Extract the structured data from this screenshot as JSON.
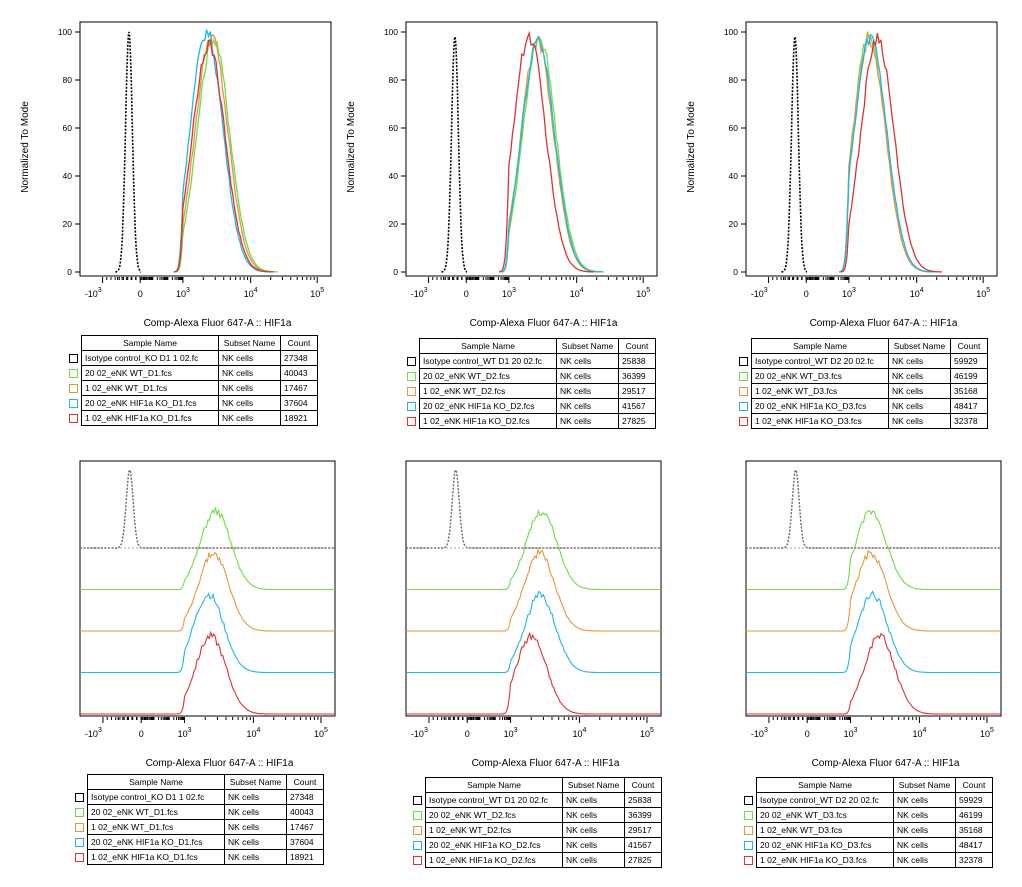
{
  "series_colors": [
    "#000000",
    "#6edc4a",
    "#e8963c",
    "#20b6e6",
    "#dc3232"
  ],
  "legend_headers": {
    "sample": "Sample Name",
    "subset": "Subset Name",
    "count": "Count"
  },
  "chart_data": [
    {
      "type": "line",
      "ylabel": "Normalized To Mode",
      "xlabel": "Comp-Alexa Fluor 647-A :: HIF1a",
      "y_ticks": [
        "0",
        "20",
        "40",
        "60",
        "80",
        "100"
      ],
      "x_ticks": [
        "-10^3",
        "0",
        "10^3",
        "10^4",
        "10^5"
      ],
      "ylim": [
        0,
        100
      ],
      "series": [
        {
          "name": "Isotype control_KO D1 1 02.fc",
          "subset": "NK cells",
          "count": "27348",
          "peak_log10": -0.3,
          "peak_height": 100
        },
        {
          "name": "20 02_eNK WT_D1.fcs",
          "subset": "NK cells",
          "count": "40043",
          "peak_log10": 3.45,
          "peak_height": 97
        },
        {
          "name": "1 02_eNK WT_D1.fcs",
          "subset": "NK cells",
          "count": "17467",
          "peak_log10": 3.42,
          "peak_height": 98
        },
        {
          "name": "20 02_eNK HIF1a KO_D1.fcs",
          "subset": "NK cells",
          "count": "37604",
          "peak_log10": 3.35,
          "peak_height": 100
        },
        {
          "name": "1 02_eNK HIF1a KO_D1.fcs",
          "subset": "NK cells",
          "count": "18921",
          "peak_log10": 3.38,
          "peak_height": 95
        }
      ]
    },
    {
      "type": "line",
      "ylabel": "Normalized To Mode",
      "xlabel": "Comp-Alexa Fluor 647-A :: HIF1a",
      "y_ticks": [
        "0",
        "20",
        "40",
        "60",
        "80",
        "100"
      ],
      "x_ticks": [
        "-10^3",
        "0",
        "10^3",
        "10^4",
        "10^5"
      ],
      "ylim": [
        0,
        100
      ],
      "series": [
        {
          "name": "Isotype control_WT D1 20 02.fc",
          "subset": "NK cells",
          "count": "25838",
          "peak_log10": -0.3,
          "peak_height": 98
        },
        {
          "name": "20 02_eNK WT_D2.fcs",
          "subset": "NK cells",
          "count": "36399",
          "peak_log10": 3.45,
          "peak_height": 98
        },
        {
          "name": "1 02_eNK WT_D2.fcs",
          "subset": "NK cells",
          "count": "29517",
          "peak_log10": 3.42,
          "peak_height": 96
        },
        {
          "name": "20 02_eNK HIF1a KO_D2.fcs",
          "subset": "NK cells",
          "count": "41567",
          "peak_log10": 3.43,
          "peak_height": 97
        },
        {
          "name": "1 02_eNK HIF1a KO_D2.fcs",
          "subset": "NK cells",
          "count": "27825",
          "peak_log10": 3.3,
          "peak_height": 98
        }
      ]
    },
    {
      "type": "line",
      "ylabel": "Normalized To Mode",
      "xlabel": "Comp-Alexa Fluor 647-A :: HIF1a",
      "y_ticks": [
        "0",
        "20",
        "40",
        "60",
        "80",
        "100"
      ],
      "x_ticks": [
        "-10^3",
        "0",
        "10^3",
        "10^4",
        "10^5"
      ],
      "ylim": [
        0,
        100
      ],
      "series": [
        {
          "name": "Isotype control_WT D2 20 02.fc",
          "subset": "NK cells",
          "count": "59929",
          "peak_log10": -0.3,
          "peak_height": 98
        },
        {
          "name": "20 02_eNK WT_D3.fcs",
          "subset": "NK cells",
          "count": "46199",
          "peak_log10": 3.3,
          "peak_height": 98
        },
        {
          "name": "1 02_eNK WT_D3.fcs",
          "subset": "NK cells",
          "count": "35168",
          "peak_log10": 3.3,
          "peak_height": 97
        },
        {
          "name": "20 02_eNK HIF1a KO_D3.fcs",
          "subset": "NK cells",
          "count": "48417",
          "peak_log10": 3.32,
          "peak_height": 98
        },
        {
          "name": "1 02_eNK HIF1a KO_D3.fcs",
          "subset": "NK cells",
          "count": "32378",
          "peak_log10": 3.42,
          "peak_height": 98
        }
      ]
    },
    {
      "type": "line",
      "xlabel": "Comp-Alexa Fluor 647-A :: HIF1a",
      "x_ticks": [
        "-10^3",
        "0",
        "10^3",
        "10^4",
        "10^5"
      ],
      "layout": "offset histograms (staggered)",
      "series": [
        {
          "name": "Isotype control_KO D1 1 02.fc",
          "subset": "NK cells",
          "count": "27348",
          "peak_log10": -0.3
        },
        {
          "name": "20 02_eNK WT_D1.fcs",
          "subset": "NK cells",
          "count": "40043",
          "peak_log10": 3.45
        },
        {
          "name": "1 02_eNK WT_D1.fcs",
          "subset": "NK cells",
          "count": "17467",
          "peak_log10": 3.42
        },
        {
          "name": "20 02_eNK HIF1a KO_D1.fcs",
          "subset": "NK cells",
          "count": "37604",
          "peak_log10": 3.35
        },
        {
          "name": "1 02_eNK HIF1a KO_D1.fcs",
          "subset": "NK cells",
          "count": "18921",
          "peak_log10": 3.38
        }
      ]
    },
    {
      "type": "line",
      "xlabel": "Comp-Alexa Fluor 647-A :: HIF1a",
      "x_ticks": [
        "-10^3",
        "0",
        "10^3",
        "10^4",
        "10^5"
      ],
      "layout": "offset histograms (staggered)",
      "series": [
        {
          "name": "Isotype control_WT D1 20 02.fc",
          "subset": "NK cells",
          "count": "25838",
          "peak_log10": -0.3
        },
        {
          "name": "20 02_eNK WT_D2.fcs",
          "subset": "NK cells",
          "count": "36399",
          "peak_log10": 3.45
        },
        {
          "name": "1 02_eNK WT_D2.fcs",
          "subset": "NK cells",
          "count": "29517",
          "peak_log10": 3.42
        },
        {
          "name": "20 02_eNK HIF1a KO_D2.fcs",
          "subset": "NK cells",
          "count": "41567",
          "peak_log10": 3.43
        },
        {
          "name": "1 02_eNK HIF1a KO_D2.fcs",
          "subset": "NK cells",
          "count": "27825",
          "peak_log10": 3.3
        }
      ]
    },
    {
      "type": "line",
      "xlabel": "Comp-Alexa Fluor 647-A :: HIF1a",
      "x_ticks": [
        "-10^3",
        "0",
        "10^3",
        "10^4",
        "10^5"
      ],
      "layout": "offset histograms (staggered)",
      "series": [
        {
          "name": "Isotype control_WT D2 20 02.fc",
          "subset": "NK cells",
          "count": "59929",
          "peak_log10": -0.3
        },
        {
          "name": "20 02_eNK WT_D3.fcs",
          "subset": "NK cells",
          "count": "46199",
          "peak_log10": 3.3
        },
        {
          "name": "1 02_eNK WT_D3.fcs",
          "subset": "NK cells",
          "count": "35168",
          "peak_log10": 3.3
        },
        {
          "name": "20 02_eNK HIF1a KO_D3.fcs",
          "subset": "NK cells",
          "count": "48417",
          "peak_log10": 3.32
        },
        {
          "name": "1 02_eNK HIF1a KO_D3.fcs",
          "subset": "NK cells",
          "count": "32378",
          "peak_log10": 3.42
        }
      ]
    }
  ]
}
